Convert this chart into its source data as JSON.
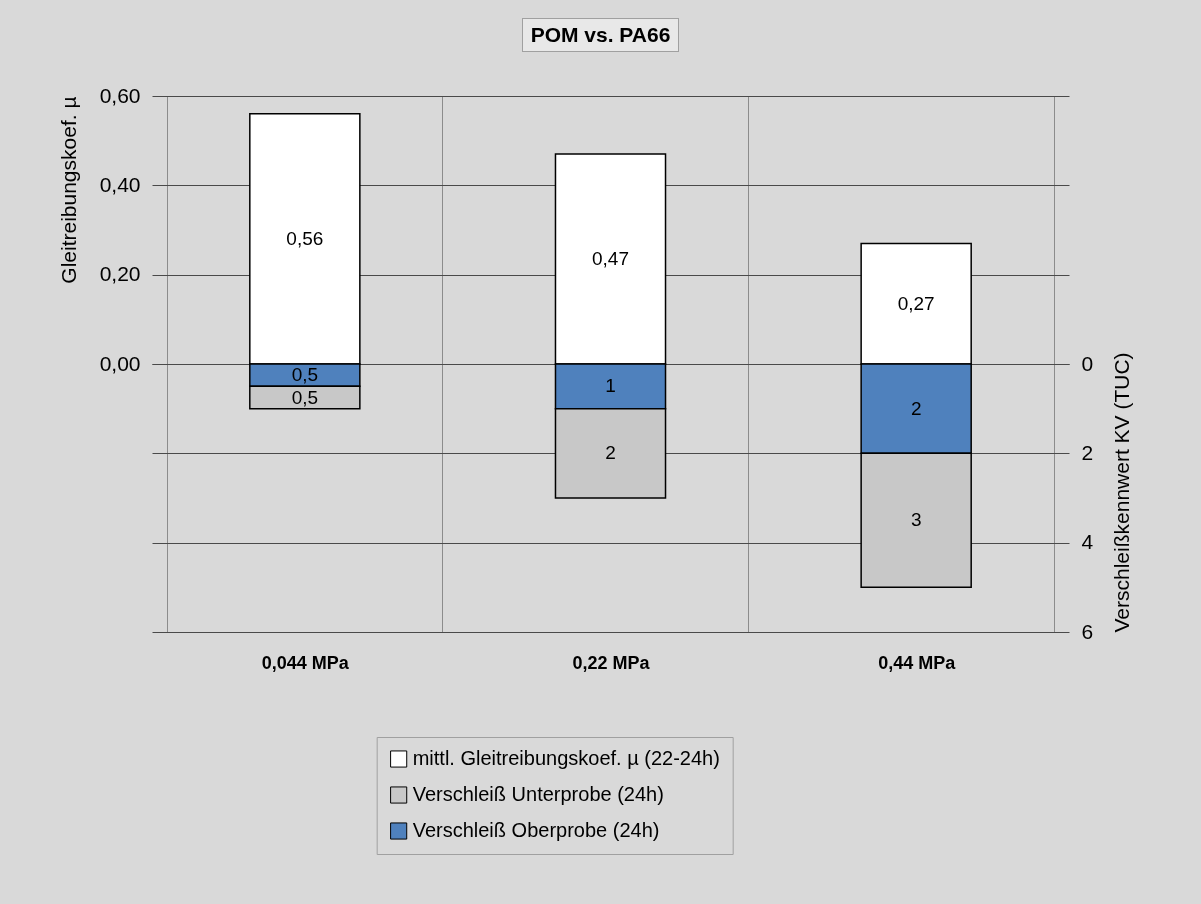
{
  "chart_data": {
    "type": "bar",
    "title": "POM vs. PA66",
    "ylabel": "Gleitreibungskoef. µ",
    "y2label": "Verschleißkennwert KV (TUC)",
    "categories": [
      "0,044 MPa",
      "0,22 MPa",
      "0,44 MPa"
    ],
    "series": [
      {
        "name": "mittl. Gleitreibungskoef. µ (22-24h)",
        "color": "#ffffff",
        "values": [
          0.56,
          0.47,
          0.27
        ],
        "value_labels": [
          "0,56",
          "0,47",
          "0,27"
        ]
      },
      {
        "name": "Verschleiß Oberprobe (24h)",
        "color": "#4f81bd",
        "values": [
          0.5,
          1,
          2
        ],
        "value_labels": [
          "0,5",
          "1",
          "2"
        ],
        "axis": "y2"
      },
      {
        "name": "Verschleiß Unterprobe (24h)",
        "color": "#c8c8c8",
        "values": [
          0.5,
          2,
          3
        ],
        "value_labels": [
          "0,5",
          "2",
          "3"
        ],
        "axis": "y2"
      }
    ],
    "stacked": true,
    "ylim": [
      -0.6,
      0.6
    ],
    "yticks": [
      {
        "value": 0,
        "label": "0,00"
      },
      {
        "value": 0.2,
        "label": "0,20"
      },
      {
        "value": 0.4,
        "label": "0,40"
      },
      {
        "value": 0.6,
        "label": "0,60"
      }
    ],
    "y2lim": [
      6,
      -6
    ],
    "y2ticks": [
      0,
      2,
      4,
      6
    ],
    "grid": true,
    "legend": "bottom"
  }
}
